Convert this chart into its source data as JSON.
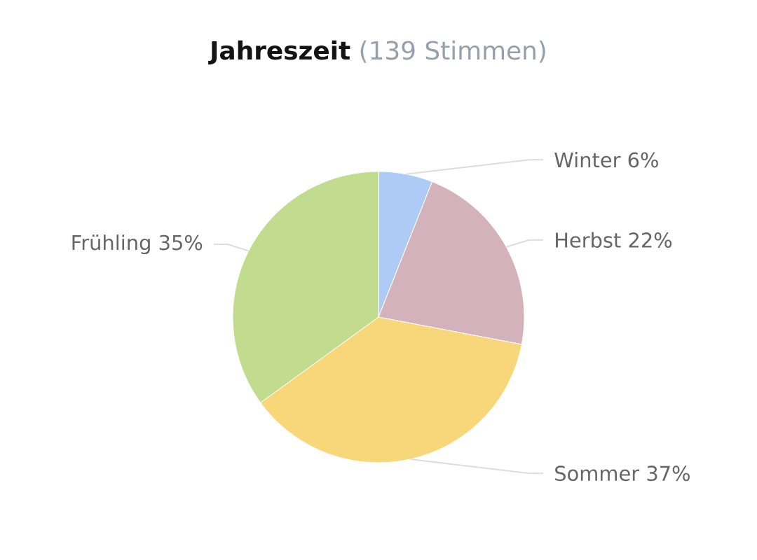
{
  "chart_data": {
    "type": "pie",
    "title": "Jahreszeit",
    "subtitle": "(139 Stimmen)",
    "categories": [
      "Winter",
      "Herbst",
      "Sommer",
      "Frühling"
    ],
    "values": [
      6,
      22,
      37,
      35
    ],
    "value_labels": [
      "6%",
      "22%",
      "37%",
      "35%"
    ],
    "colors": [
      "#aecbf5",
      "#d4b2bc",
      "#f7d77a",
      "#c2dc8f"
    ]
  }
}
